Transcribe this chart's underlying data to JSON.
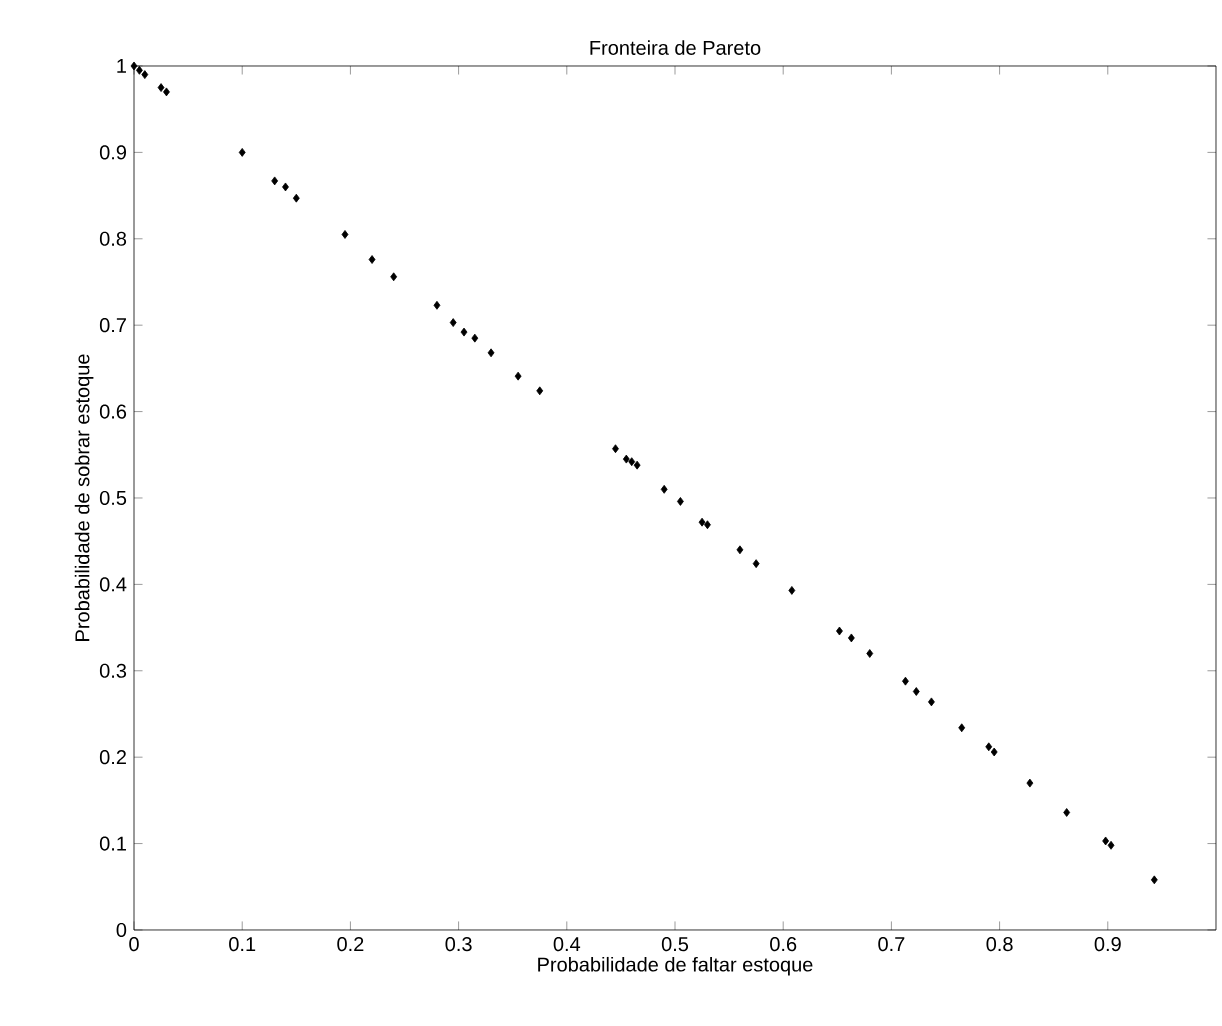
{
  "chart_data": {
    "type": "scatter",
    "title": "Fronteira de Pareto",
    "xlabel": "Probabilidade de faltar estoque",
    "ylabel": "Probabilidade de sobrar estoque",
    "x": [
      0.0,
      0.005,
      0.01,
      0.025,
      0.03,
      0.1,
      0.13,
      0.14,
      0.15,
      0.195,
      0.22,
      0.24,
      0.28,
      0.295,
      0.305,
      0.315,
      0.33,
      0.355,
      0.375,
      0.445,
      0.455,
      0.46,
      0.465,
      0.49,
      0.505,
      0.525,
      0.53,
      0.56,
      0.575,
      0.608,
      0.652,
      0.663,
      0.68,
      0.713,
      0.723,
      0.737,
      0.765,
      0.79,
      0.795,
      0.828,
      0.862,
      0.898,
      0.903,
      0.943
    ],
    "values": [
      1.0,
      0.995,
      0.99,
      0.975,
      0.97,
      0.9,
      0.867,
      0.86,
      0.847,
      0.805,
      0.776,
      0.756,
      0.723,
      0.703,
      0.692,
      0.685,
      0.668,
      0.641,
      0.624,
      0.557,
      0.545,
      0.542,
      0.538,
      0.51,
      0.496,
      0.472,
      0.469,
      0.44,
      0.424,
      0.393,
      0.346,
      0.338,
      0.32,
      0.288,
      0.276,
      0.264,
      0.234,
      0.212,
      0.206,
      0.17,
      0.136,
      0.103,
      0.098,
      0.058
    ],
    "color": "#000000",
    "marker": "diamond",
    "xlim": [
      0,
      1
    ],
    "ylim": [
      0,
      1
    ],
    "xticks": [
      0,
      0.1,
      0.2,
      0.3,
      0.4,
      0.5,
      0.6,
      0.7,
      0.8,
      0.9
    ],
    "yticks": [
      0,
      0.1,
      0.2,
      0.3,
      0.4,
      0.5,
      0.6,
      0.7,
      0.8,
      0.9,
      1
    ]
  }
}
